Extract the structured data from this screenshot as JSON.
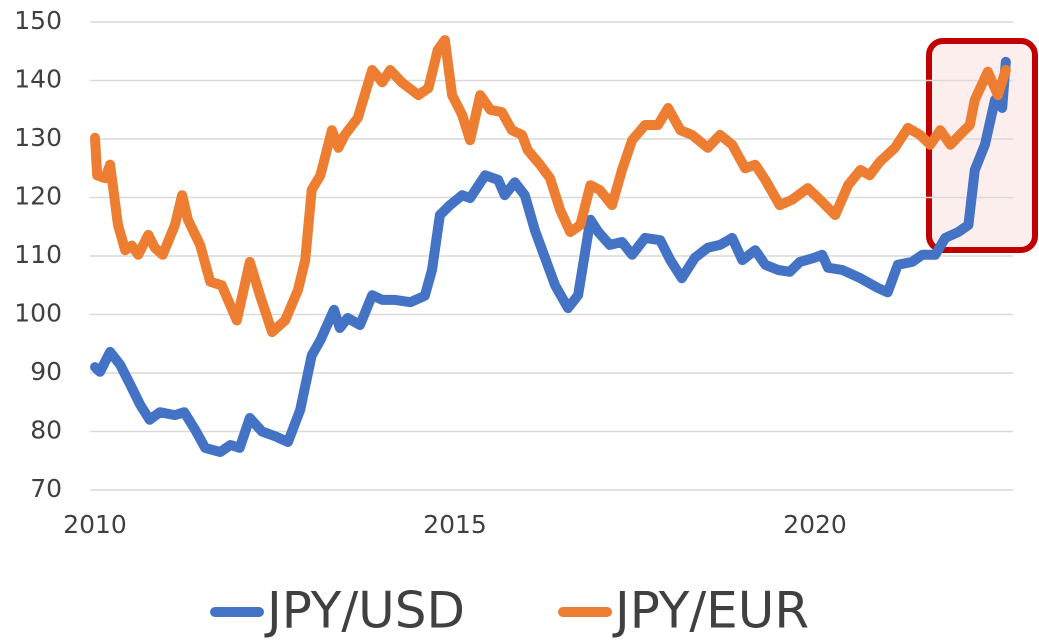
{
  "chart_data": {
    "type": "line",
    "xlim": [
      2010,
      2022.75
    ],
    "xticks": [
      2010,
      2015,
      2020
    ],
    "ylim": [
      70,
      150
    ],
    "yticks": [
      70,
      80,
      90,
      100,
      110,
      120,
      130,
      140,
      150
    ],
    "grid": true,
    "legend": "bottom",
    "series": [
      {
        "name": "JPY/USD",
        "color": "#4472c4",
        "x": [
          2010.0,
          2010.07,
          2010.21,
          2010.35,
          2010.49,
          2010.63,
          2010.76,
          2010.9,
          2011.11,
          2011.24,
          2011.39,
          2011.53,
          2011.74,
          2011.88,
          2012.01,
          2012.15,
          2012.32,
          2012.5,
          2012.68,
          2012.85,
          2013.01,
          2013.13,
          2013.32,
          2013.4,
          2013.51,
          2013.68,
          2013.85,
          2013.99,
          2014.17,
          2014.38,
          2014.58,
          2014.68,
          2014.79,
          2014.93,
          2015.1,
          2015.21,
          2015.42,
          2015.6,
          2015.69,
          2015.83,
          2015.97,
          2016.11,
          2016.25,
          2016.39,
          2016.57,
          2016.71,
          2016.88,
          2016.99,
          2017.15,
          2017.32,
          2017.46,
          2017.64,
          2017.85,
          2017.99,
          2018.15,
          2018.33,
          2018.51,
          2018.68,
          2018.85,
          2018.99,
          2019.17,
          2019.31,
          2019.49,
          2019.65,
          2019.79,
          2019.99,
          2020.1,
          2020.18,
          2020.38,
          2020.63,
          2020.88,
          2021.01,
          2021.15,
          2021.35,
          2021.49,
          2021.67,
          2021.81,
          2021.99,
          2022.13,
          2022.22,
          2022.36,
          2022.5,
          2022.6,
          2022.65
        ],
        "values": [
          91,
          90.2,
          93.6,
          91.4,
          88,
          84.5,
          82,
          83.3,
          82.8,
          83.3,
          80.3,
          77.2,
          76.5,
          77.7,
          77.2,
          82.3,
          80,
          79.2,
          78.2,
          83.7,
          93,
          95.6,
          100.8,
          97.7,
          99.4,
          98.2,
          103.3,
          102.5,
          102.5,
          102.1,
          103.2,
          107.6,
          117,
          118.7,
          120.4,
          119.9,
          123.8,
          123,
          120.4,
          122.6,
          120.4,
          114.4,
          109.7,
          105,
          101.1,
          103.3,
          116.2,
          114.1,
          111.9,
          112.4,
          110.2,
          113.1,
          112.7,
          109.3,
          106.2,
          109.7,
          111.4,
          111.9,
          113.1,
          109.3,
          111,
          108.5,
          107.6,
          107.3,
          109,
          109.7,
          110.2,
          108,
          107.6,
          106.2,
          104.5,
          103.8,
          108.5,
          109,
          110.2,
          110.2,
          113.1,
          114.1,
          115.3,
          124.7,
          129,
          136.7,
          135.3,
          143.2
        ]
      },
      {
        "name": "JPY/EUR",
        "color": "#ed7d31",
        "x": [
          2010.0,
          2010.03,
          2010.14,
          2010.21,
          2010.32,
          2010.42,
          2010.51,
          2010.6,
          2010.74,
          2010.83,
          2010.94,
          2011.11,
          2011.21,
          2011.29,
          2011.46,
          2011.6,
          2011.76,
          2011.97,
          2012.15,
          2012.29,
          2012.46,
          2012.64,
          2012.82,
          2012.92,
          2013.01,
          2013.13,
          2013.29,
          2013.38,
          2013.47,
          2013.65,
          2013.85,
          2013.99,
          2014.1,
          2014.26,
          2014.49,
          2014.63,
          2014.76,
          2014.86,
          2014.96,
          2015.1,
          2015.21,
          2015.35,
          2015.49,
          2015.65,
          2015.79,
          2015.93,
          2016.01,
          2016.18,
          2016.32,
          2016.46,
          2016.6,
          2016.74,
          2016.88,
          2017.01,
          2017.18,
          2017.32,
          2017.46,
          2017.64,
          2017.82,
          2017.96,
          2018.13,
          2018.29,
          2018.51,
          2018.68,
          2018.85,
          2019.03,
          2019.17,
          2019.31,
          2019.51,
          2019.68,
          2019.9,
          2020.07,
          2020.28,
          2020.46,
          2020.63,
          2020.76,
          2020.9,
          2021.11,
          2021.29,
          2021.46,
          2021.6,
          2021.74,
          2021.88,
          2022.01,
          2022.15,
          2022.22,
          2022.4,
          2022.54,
          2022.65
        ],
        "values": [
          130.2,
          123.8,
          123.3,
          125.6,
          115.3,
          111,
          111.8,
          110.2,
          113.6,
          111.4,
          110.2,
          115.3,
          120.4,
          116.2,
          111.9,
          105.6,
          105,
          99,
          109,
          103.3,
          97,
          99,
          104.2,
          109.3,
          121.3,
          123.8,
          131.5,
          128.5,
          130.7,
          133.6,
          141.8,
          139.7,
          141.8,
          139.7,
          137.5,
          138.7,
          145.2,
          146.9,
          137.5,
          134.1,
          129.8,
          137.5,
          135,
          134.6,
          131.5,
          130.7,
          128.1,
          125.6,
          123.3,
          117.9,
          114.1,
          115.3,
          122.1,
          121.3,
          118.7,
          124.7,
          129.8,
          132.4,
          132.4,
          135.3,
          131.5,
          130.7,
          128.5,
          130.7,
          129,
          125,
          125.6,
          123,
          118.7,
          119.6,
          121.6,
          119.6,
          117,
          122.1,
          124.7,
          123.8,
          126.1,
          128.5,
          131.9,
          130.7,
          129,
          131.5,
          129,
          130.7,
          132.4,
          136.7,
          141.5,
          137.5,
          141.8
        ]
      }
    ]
  }
}
